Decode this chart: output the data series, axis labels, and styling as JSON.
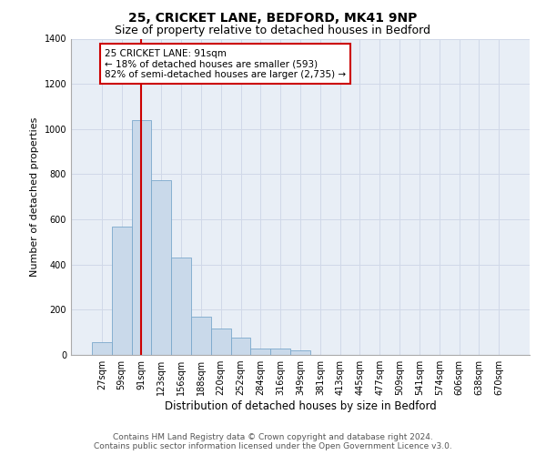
{
  "title1": "25, CRICKET LANE, BEDFORD, MK41 9NP",
  "title2": "Size of property relative to detached houses in Bedford",
  "xlabel": "Distribution of detached houses by size in Bedford",
  "ylabel": "Number of detached properties",
  "bar_labels": [
    "27sqm",
    "59sqm",
    "91sqm",
    "123sqm",
    "156sqm",
    "188sqm",
    "220sqm",
    "252sqm",
    "284sqm",
    "316sqm",
    "349sqm",
    "381sqm",
    "413sqm",
    "445sqm",
    "477sqm",
    "509sqm",
    "541sqm",
    "574sqm",
    "606sqm",
    "638sqm",
    "670sqm"
  ],
  "bar_values": [
    55,
    570,
    1040,
    775,
    430,
    170,
    115,
    75,
    30,
    30,
    20,
    0,
    0,
    0,
    0,
    0,
    0,
    0,
    0,
    0,
    0
  ],
  "bar_color": "#c9d9ea",
  "bar_edge_color": "#7aa8cc",
  "highlight_bar_index": 2,
  "highlight_line_color": "#cc0000",
  "annotation_text": "25 CRICKET LANE: 91sqm\n← 18% of detached houses are smaller (593)\n82% of semi-detached houses are larger (2,735) →",
  "annotation_box_color": "#cc0000",
  "annotation_box_facecolor": "white",
  "ylim": [
    0,
    1400
  ],
  "yticks": [
    0,
    200,
    400,
    600,
    800,
    1000,
    1200,
    1400
  ],
  "grid_color": "#d0d8e8",
  "bg_color": "#e8eef6",
  "footer1": "Contains HM Land Registry data © Crown copyright and database right 2024.",
  "footer2": "Contains public sector information licensed under the Open Government Licence v3.0.",
  "title1_fontsize": 10,
  "title2_fontsize": 9,
  "xlabel_fontsize": 8.5,
  "ylabel_fontsize": 8,
  "tick_fontsize": 7,
  "annotation_fontsize": 7.5,
  "footer_fontsize": 6.5
}
